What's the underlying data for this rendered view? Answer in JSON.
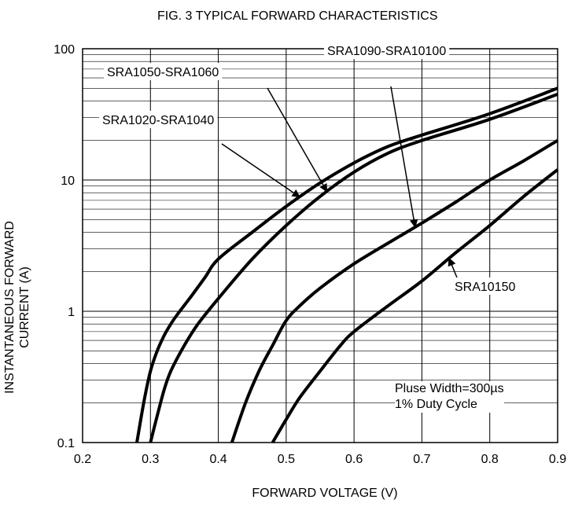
{
  "chart_data": {
    "type": "line",
    "title": "FIG. 3 TYPICAL FORWARD CHARACTERISTICS",
    "xlabel": "FORWARD VOLTAGE (V)",
    "ylabel_line1": "INSTANTANEOUS FORWARD",
    "ylabel_line2": "CURRENT (A)",
    "xlim": [
      0.2,
      0.9
    ],
    "ylim": [
      0.1,
      100
    ],
    "yscale": "log",
    "grid": true,
    "x_ticks": [
      "0.2",
      "0.3",
      "0.4",
      "0.5",
      "0.6",
      "0.7",
      "0.8",
      "0.9"
    ],
    "y_ticks": [
      {
        "v": 0.1,
        "label": "0.1"
      },
      {
        "v": 1,
        "label": "1"
      },
      {
        "v": 10,
        "label": "10"
      },
      {
        "v": 100,
        "label": "100"
      }
    ],
    "series": [
      {
        "name": "SRA1020-SRA1040",
        "x": [
          0.28,
          0.29,
          0.3,
          0.31,
          0.32,
          0.33,
          0.34,
          0.36,
          0.38,
          0.4,
          0.45,
          0.5,
          0.55,
          0.6,
          0.65,
          0.7,
          0.8,
          0.9
        ],
        "y": [
          0.1,
          0.2,
          0.35,
          0.5,
          0.65,
          0.8,
          0.95,
          1.3,
          1.8,
          2.5,
          4.0,
          6.3,
          9.5,
          13.5,
          18,
          22,
          32,
          50
        ]
      },
      {
        "name": "SRA1050-SRA1060",
        "x": [
          0.3,
          0.31,
          0.32,
          0.33,
          0.35,
          0.37,
          0.4,
          0.45,
          0.5,
          0.55,
          0.6,
          0.65,
          0.7,
          0.8,
          0.9
        ],
        "y": [
          0.1,
          0.16,
          0.25,
          0.35,
          0.55,
          0.8,
          1.25,
          2.5,
          4.5,
          7.5,
          11.5,
          16,
          20,
          29,
          45
        ]
      },
      {
        "name": "SRA1090-SRA10100",
        "x": [
          0.42,
          0.44,
          0.46,
          0.48,
          0.5,
          0.52,
          0.55,
          0.6,
          0.65,
          0.7,
          0.75,
          0.8,
          0.85,
          0.9
        ],
        "y": [
          0.1,
          0.2,
          0.35,
          0.55,
          0.85,
          1.1,
          1.5,
          2.3,
          3.3,
          4.7,
          6.8,
          10,
          14,
          20
        ]
      },
      {
        "name": "SRA10150",
        "x": [
          0.48,
          0.5,
          0.52,
          0.55,
          0.58,
          0.6,
          0.65,
          0.7,
          0.75,
          0.8,
          0.85,
          0.9
        ],
        "y": [
          0.1,
          0.15,
          0.22,
          0.35,
          0.55,
          0.7,
          1.1,
          1.7,
          2.8,
          4.5,
          7.5,
          12
        ]
      }
    ],
    "annotations": [
      {
        "text": "SRA1050-SRA1060",
        "target_series": "SRA1050-SRA1060",
        "target_x": 0.56
      },
      {
        "text": "SRA1020-SRA1040",
        "target_series": "SRA1020-SRA1040",
        "target_x": 0.52
      },
      {
        "text": "SRA1090-SRA10100",
        "target_series": "SRA1090-SRA10100",
        "target_x": 0.69
      },
      {
        "text": "SRA10150",
        "target_series": "SRA10150",
        "target_x": 0.74
      }
    ],
    "note_line1": "Pluse Width=300µs",
    "note_line2": "1% Duty Cycle"
  }
}
